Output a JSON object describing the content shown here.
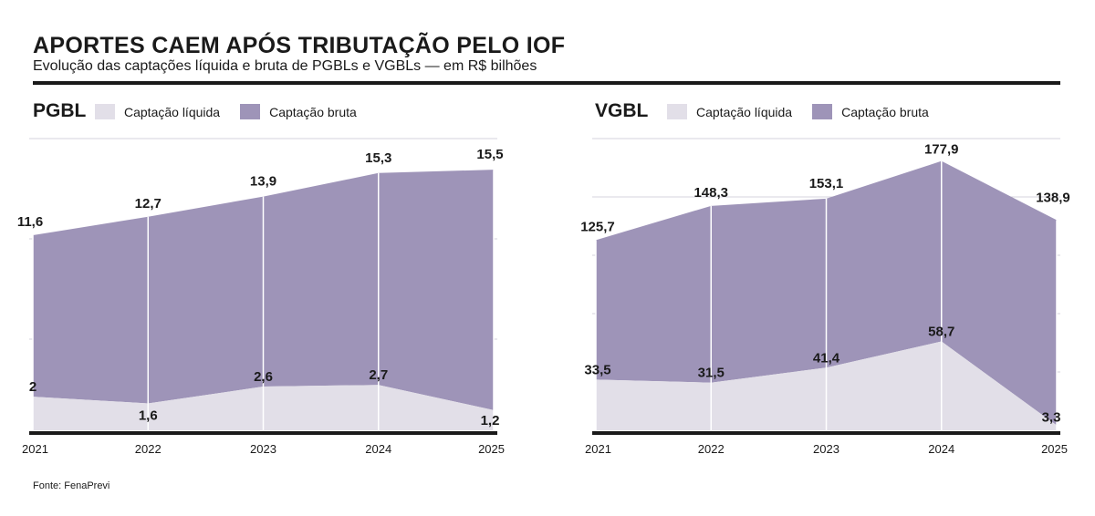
{
  "header": {
    "title": "APORTES CAEM APÓS TRIBUTAÇÃO PELO IOF",
    "subtitle": "Evolução das captações líquida e bruta de PGBLs e VGBLs — em R$ bilhões"
  },
  "legend": {
    "liquida": "Captação líquida",
    "bruta": "Captação bruta"
  },
  "colors": {
    "liquida": "#e2dfe8",
    "bruta": "#9e94b8",
    "text": "#1a1a1a",
    "grid": "#d6d3dc"
  },
  "source": "Fonte: FenaPrevi",
  "chart_data": [
    {
      "type": "area",
      "title": "PGBL",
      "categories": [
        "2021",
        "2022",
        "2023",
        "2024",
        "2025"
      ],
      "series": [
        {
          "name": "Captação bruta",
          "values": [
            11.6,
            12.7,
            13.9,
            15.3,
            15.5
          ],
          "labels": [
            "11,6",
            "12,7",
            "13,9",
            "15,3",
            "15,5"
          ]
        },
        {
          "name": "Captação líquida",
          "values": [
            2,
            1.6,
            2.6,
            2.7,
            1.2
          ],
          "labels": [
            "2",
            "1,6",
            "2,6",
            "2,7",
            "1,2"
          ]
        }
      ],
      "ylim": [
        0,
        18
      ],
      "grid": true
    },
    {
      "type": "area",
      "title": "VGBL",
      "categories": [
        "2021",
        "2022",
        "2023",
        "2024",
        "2025"
      ],
      "series": [
        {
          "name": "Captação bruta",
          "values": [
            125.7,
            148.3,
            153.1,
            177.9,
            138.9
          ],
          "labels": [
            "125,7",
            "148,3",
            "153,1",
            "177,9",
            "138,9"
          ]
        },
        {
          "name": "Captação líquida",
          "values": [
            33.5,
            31.5,
            41.4,
            58.7,
            3.3
          ],
          "labels": [
            "33,5",
            "31,5",
            "41,4",
            "58,7",
            "3,3"
          ]
        }
      ],
      "ylim": [
        0,
        200
      ],
      "grid": true
    }
  ]
}
